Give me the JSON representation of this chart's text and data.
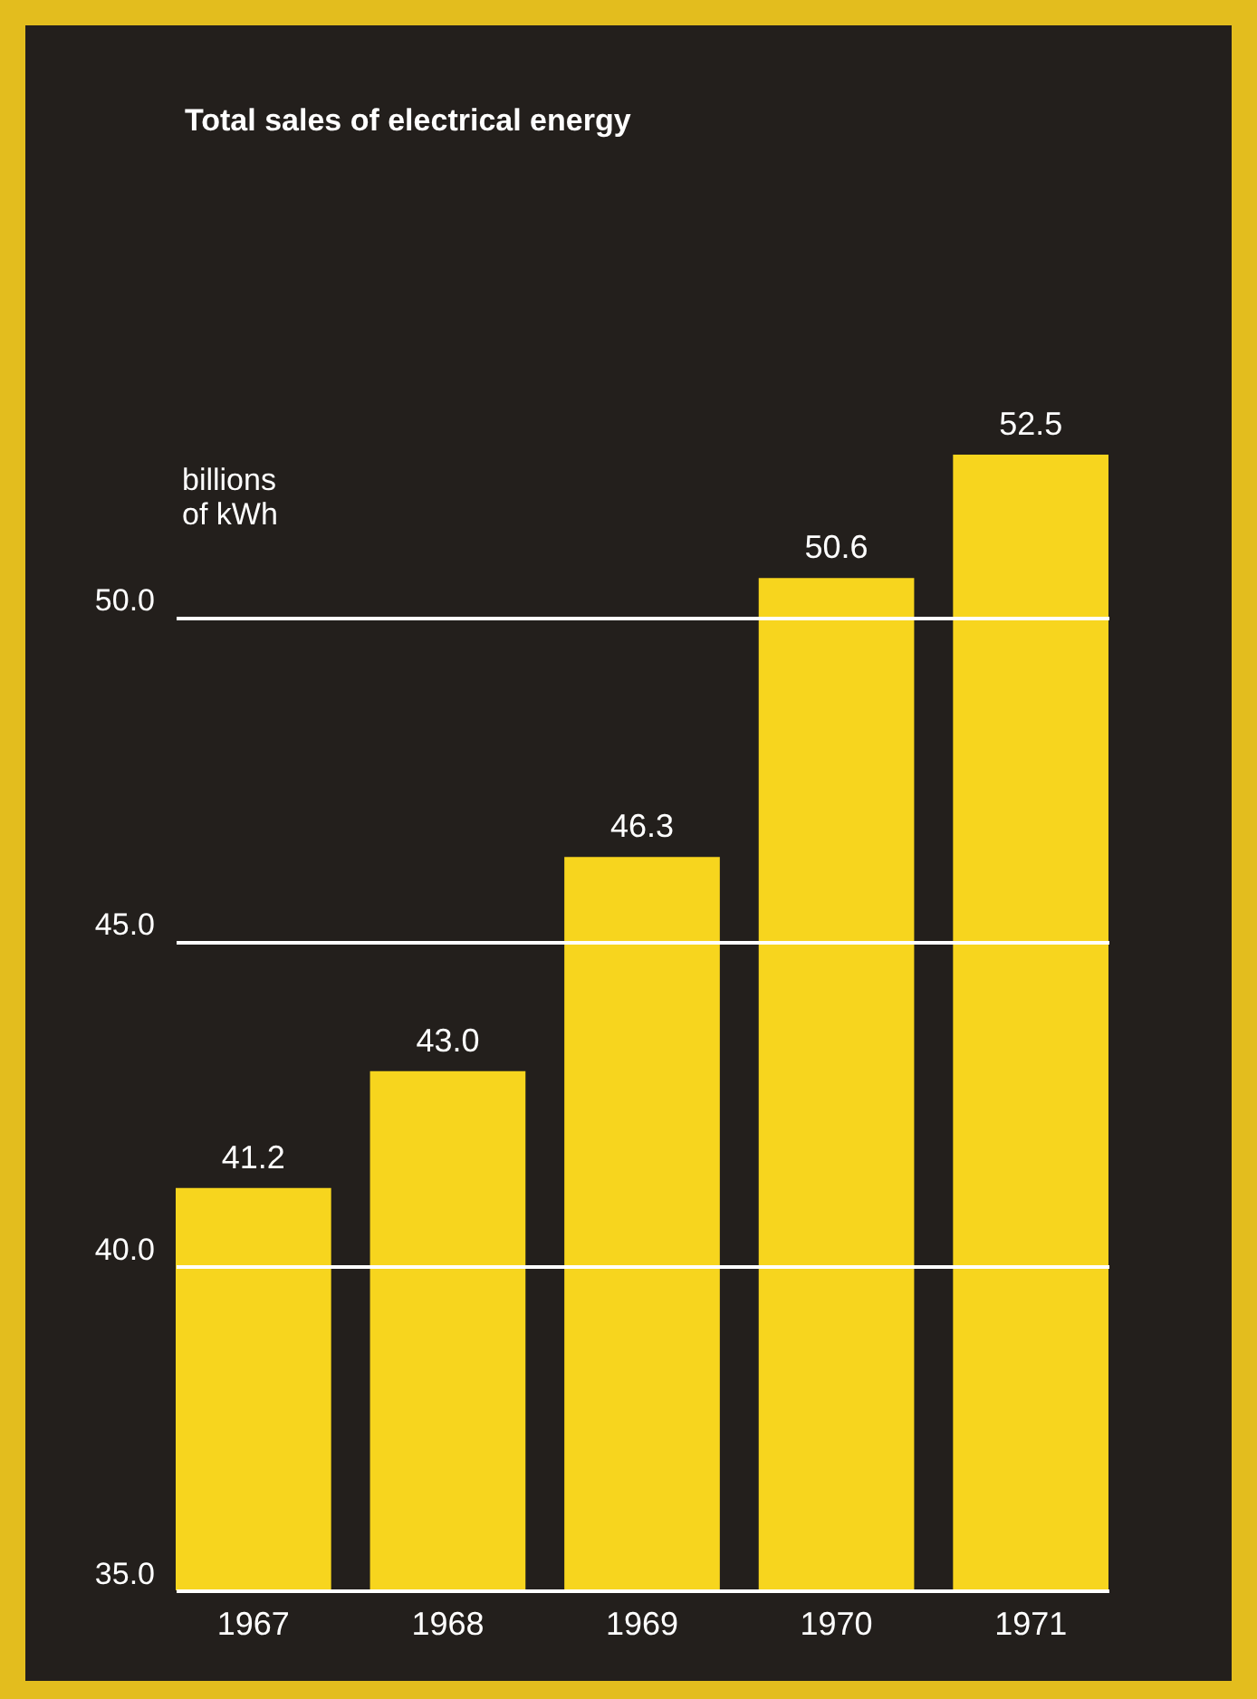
{
  "chart_data": {
    "type": "bar",
    "title": "Total sales of electrical energy",
    "ylabel": "billions of kWh",
    "categories": [
      "1967",
      "1968",
      "1969",
      "1970",
      "1971"
    ],
    "series": [
      {
        "color": "#f7d51e",
        "values": [
          41.2,
          43.0,
          46.3,
          50.6,
          52.5
        ],
        "value_labels": [
          "41.2",
          "43.0",
          "46.3",
          "50.6",
          "52.5"
        ]
      }
    ],
    "ylim": [
      35,
      52.5
    ],
    "yticks": [
      {
        "value": 35,
        "label": "35.0"
      },
      {
        "value": 40,
        "label": "40.0"
      },
      {
        "value": 45,
        "label": "45.0"
      },
      {
        "value": 50,
        "label": "50.0"
      }
    ],
    "grid": "y"
  }
}
